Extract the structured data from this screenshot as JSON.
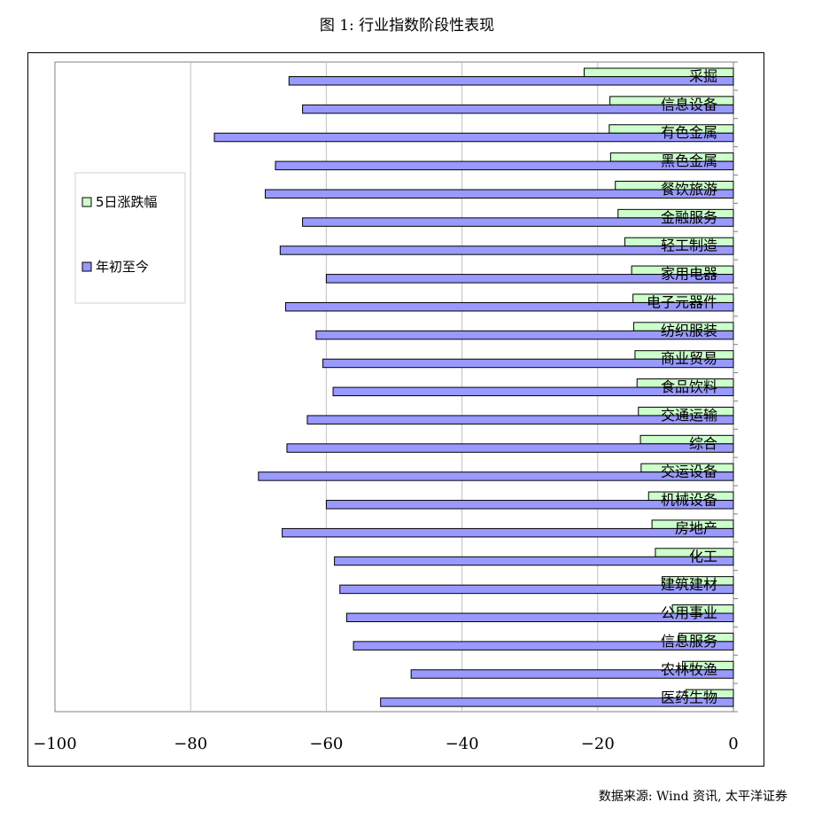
{
  "title": "图 1: 行业指数阶段性表现",
  "source": "数据来源: Wind 资讯, 太平洋证券",
  "colors": {
    "series1": "#ccffcc",
    "series2": "#9999ff",
    "grid": "#c0c0c0",
    "axis": "#808080"
  },
  "chart_data": {
    "type": "bar",
    "orientation": "horizontal",
    "categories": [
      "采掘",
      "信息设备",
      "有色金属",
      "黑色金属",
      "餐饮旅游",
      "金融服务",
      "轻工制造",
      "家用电器",
      "电子元器件",
      "纺织服装",
      "商业贸易",
      "食品饮料",
      "交通运输",
      "综合",
      "交运设备",
      "机械设备",
      "房地产",
      "化工",
      "建筑建材",
      "公用事业",
      "信息服务",
      "农林牧渔",
      "医药生物"
    ],
    "series": [
      {
        "name": "5日涨跌幅",
        "values": [
          -22,
          -18.2,
          -18.3,
          -18.1,
          -17.4,
          -17,
          -16,
          -15,
          -14.8,
          -14.7,
          -14.5,
          -14.2,
          -14,
          -13.7,
          -13.6,
          -12.5,
          -12,
          -11.5,
          -10.5,
          -9,
          -8,
          -7.5,
          -7
        ]
      },
      {
        "name": "年初至今",
        "values": [
          -65.5,
          -63.5,
          -76.5,
          -67.5,
          -69,
          -63.5,
          -66.8,
          -60,
          -66,
          -61.5,
          -60.5,
          -59,
          -62.8,
          -65.8,
          -70,
          -60,
          -66.5,
          -58.8,
          -58,
          -57,
          -56,
          -47.5,
          -52
        ]
      }
    ],
    "xlim": [
      -100,
      0
    ],
    "xticks": [
      -100,
      -80,
      -60,
      -40,
      -20,
      0
    ],
    "grid": true,
    "legend_position": "left"
  }
}
